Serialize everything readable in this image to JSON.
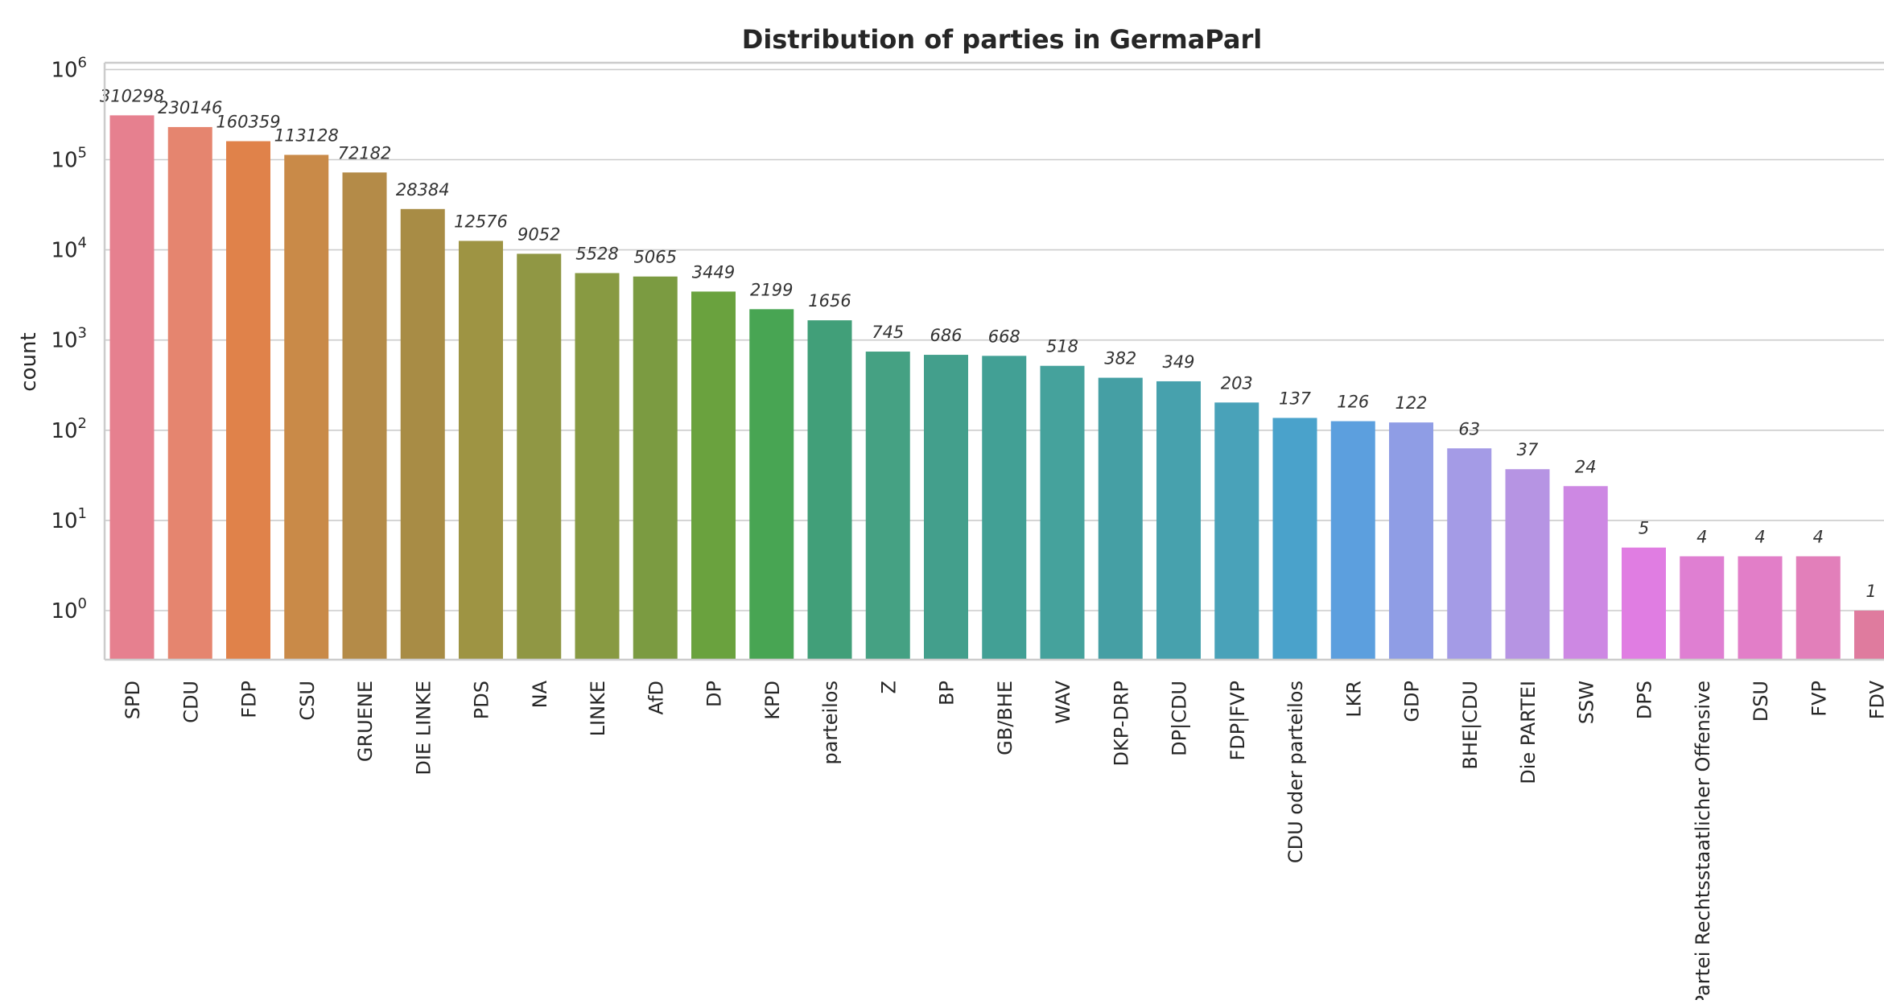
{
  "chart_data": {
    "type": "bar",
    "title": "Distribution of parties in GermaParl",
    "xlabel": "",
    "ylabel": "count",
    "yscale": "log",
    "ylim": [
      0.45,
      1150000
    ],
    "grid": true,
    "yticks": [
      {
        "value": 1,
        "base": "10",
        "exp": "0"
      },
      {
        "value": 10,
        "base": "10",
        "exp": "1"
      },
      {
        "value": 100,
        "base": "10",
        "exp": "2"
      },
      {
        "value": 1000,
        "base": "10",
        "exp": "3"
      },
      {
        "value": 10000,
        "base": "10",
        "exp": "4"
      },
      {
        "value": 100000,
        "base": "10",
        "exp": "5"
      },
      {
        "value": 1000000,
        "base": "10",
        "exp": "6"
      }
    ],
    "categories": [
      "SPD",
      "CDU",
      "FDP",
      "CSU",
      "GRUENE",
      "DIE LINKE",
      "PDS",
      "NA",
      "LINKE",
      "AfD",
      "DP",
      "KPD",
      "parteilos",
      "Z",
      "BP",
      "GB/BHE",
      "WAV",
      "DKP-DRP",
      "DP|CDU",
      "FDP|FVP",
      "CDU oder parteilos",
      "LKR",
      "GDP",
      "BHE|CDU",
      "Die PARTEI",
      "SSW",
      "DPS",
      "Partei Rechtsstaatlicher Offensive",
      "DSU",
      "FVP",
      "FDV"
    ],
    "values": [
      310298,
      230146,
      160359,
      113128,
      72182,
      28384,
      12576,
      9052,
      5528,
      5065,
      3449,
      2199,
      1656,
      745,
      686,
      668,
      518,
      382,
      349,
      203,
      137,
      126,
      122,
      63,
      37,
      24,
      5,
      4,
      4,
      4,
      1
    ],
    "data_labels": [
      "310298",
      "230146",
      "160359",
      "113128",
      "72182",
      "28384",
      "12576",
      "9052",
      "5528",
      "5065",
      "3449",
      "2199",
      "1656",
      "745",
      "686",
      "668",
      "518",
      "382",
      "349",
      "203",
      "137",
      "126",
      "122",
      "63",
      "37",
      "24",
      "5",
      "4",
      "4",
      "4",
      "1"
    ],
    "colors": [
      "#e6808f",
      "#e5856f",
      "#e0824a",
      "#c98a48",
      "#b48b48",
      "#a88c45",
      "#9e9443",
      "#909744",
      "#889a42",
      "#7b9b41",
      "#6aa23e",
      "#48a553",
      "#419f79",
      "#45a183",
      "#439f8c",
      "#42a095",
      "#45a29c",
      "#459fa4",
      "#47a1ad",
      "#49a2b9",
      "#4aa2cb",
      "#5c9fde",
      "#8f9de5",
      "#a49be6",
      "#b694e3",
      "#cd88e3",
      "#e07de2",
      "#df7fd2",
      "#e27ec8",
      "#e27fba",
      "#df7b9e"
    ]
  }
}
